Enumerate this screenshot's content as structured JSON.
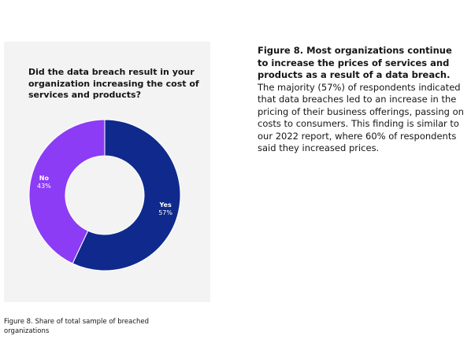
{
  "chart_data": {
    "type": "pie",
    "variant": "donut",
    "title": "Did the data breach result in your organization increasing the cost of services and products?",
    "slices": [
      {
        "label": "Yes",
        "value": 57,
        "value_label": "57%",
        "color": "#0f2a8c"
      },
      {
        "label": "No",
        "value": 43,
        "value_label": "43%",
        "color": "#8c3cf5"
      }
    ],
    "legend": "none",
    "background": "#f3f3f3"
  },
  "caption": {
    "text": "Figure 8. Share of total sample of breached organizations"
  },
  "figure_text": {
    "title": "Figure 8. Most organizations continue to increase the prices of services and products as a result of a data breach.",
    "body": "The majority (57%) of respondents indicated that data breaches led to an increase in the pricing of their business offerings, passing on costs to consumers. This finding is similar to our 2022 report, where 60% of respondents said they increased prices."
  }
}
